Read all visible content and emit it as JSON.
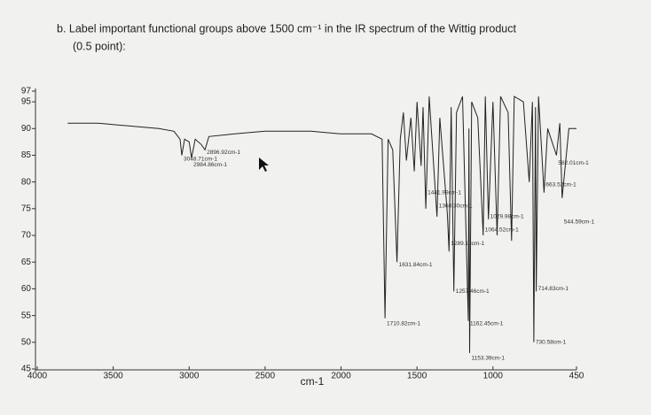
{
  "chart_data": {
    "type": "line",
    "title": "b. Label important functional groups above 1500 cm⁻¹ in the IR spectrum of the Wittig product",
    "subtitle": "(0.5 point):",
    "x_label": "cm-1",
    "color": "#222222",
    "x": [
      3800,
      3600,
      3400,
      3200,
      3100,
      3060,
      3048,
      3030,
      3000,
      2984,
      2960,
      2920,
      2896,
      2870,
      2700,
      2500,
      2200,
      2000,
      1800,
      1730,
      1710.82,
      1690,
      1660,
      1631.84,
      1610,
      1590,
      1570,
      1540,
      1518,
      1500,
      1473,
      1460,
      1441.99,
      1420,
      1368.3,
      1350,
      1300,
      1289.18,
      1275,
      1257.46,
      1240,
      1200,
      1162.45,
      1158,
      1153.39,
      1140,
      1100,
      1064.52,
      1050,
      1029.98,
      1000,
      972.84,
      950,
      900,
      877.47,
      860,
      800,
      761,
      740,
      730.58,
      720,
      714.83,
      700,
      663.52,
      640,
      582.01,
      560,
      544.59,
      500,
      450
    ],
    "values": [
      91,
      91,
      90.5,
      90,
      89.5,
      88,
      85,
      88,
      87.5,
      84.5,
      88,
      87,
      86,
      88.5,
      89,
      89.5,
      89.5,
      89,
      89,
      88,
      54.5,
      88,
      86,
      65,
      88,
      93,
      84,
      92,
      82,
      95,
      83,
      94,
      75,
      96,
      73.5,
      92,
      74,
      67,
      94,
      59.5,
      93,
      96,
      54,
      90,
      48,
      95,
      92,
      70,
      96,
      73,
      95,
      70,
      96,
      93,
      69,
      96,
      95,
      80,
      95,
      50,
      94,
      59.5,
      96,
      78,
      90,
      85,
      91,
      77,
      90,
      90
    ],
    "xlim": [
      4000,
      450
    ],
    "xticks": [
      4000,
      3500,
      3000,
      2500,
      2000,
      1500,
      1000,
      450
    ],
    "ylim": [
      45,
      97
    ],
    "yticks": [
      45,
      50,
      55,
      60,
      65,
      70,
      75,
      80,
      85,
      90,
      95,
      97
    ],
    "annotations": [
      {
        "text": "2896.92cm-1",
        "x": 2896,
        "y": 85.5
      },
      {
        "text": "3048.71cm-1",
        "x": 3048,
        "y": 84.3
      },
      {
        "text": "2984.86cm-1",
        "x": 2984,
        "y": 83.2
      },
      {
        "text": "1710.82cm-1",
        "x": 1710.82,
        "y": 53.5
      },
      {
        "text": "1631.84cm-1",
        "x": 1631.84,
        "y": 64.5
      },
      {
        "text": "1441.99cm-1",
        "x": 1441.99,
        "y": 78
      },
      {
        "text": "1368.30cm-1",
        "x": 1368.3,
        "y": 75.5
      },
      {
        "text": "1289.18cm-1",
        "x": 1289.18,
        "y": 68.5
      },
      {
        "text": "1257.46cm-1",
        "x": 1257.46,
        "y": 59.5
      },
      {
        "text": "1162.45cm-1",
        "x": 1162.45,
        "y": 53.5
      },
      {
        "text": "1153.39cm-1",
        "x": 1153.39,
        "y": 47
      },
      {
        "text": "1029.98cm-1",
        "x": 1029.98,
        "y": 73.5
      },
      {
        "text": "1064.52cm-1",
        "x": 1064.52,
        "y": 71
      },
      {
        "text": "730.58cm-1",
        "x": 730.58,
        "y": 50
      },
      {
        "text": "714.83cm-1",
        "x": 714.83,
        "y": 60
      },
      {
        "text": "663.52cm-1",
        "x": 663.52,
        "y": 79.5
      },
      {
        "text": "544.59cm-1",
        "x": 544.59,
        "y": 72.5
      },
      {
        "text": "582.01cm-1",
        "x": 582.01,
        "y": 83.5
      }
    ]
  }
}
